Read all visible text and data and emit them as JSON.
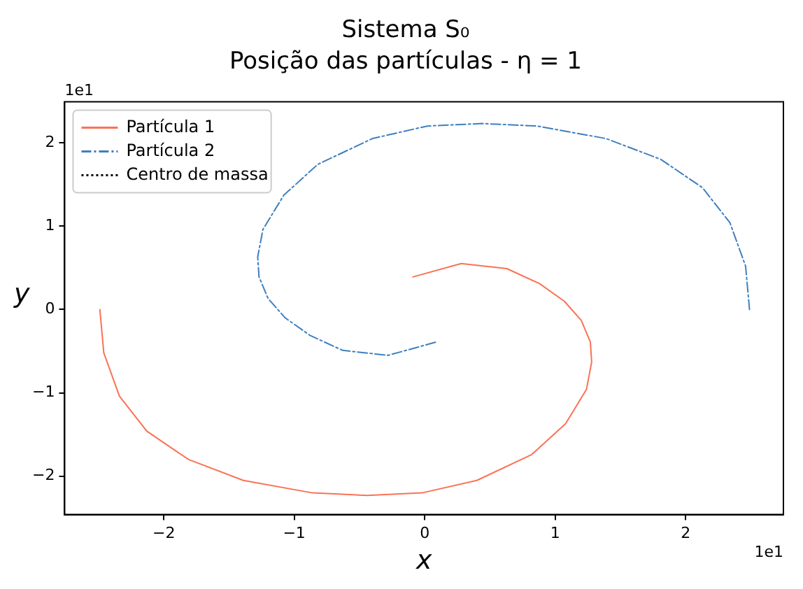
{
  "chart_data": {
    "type": "line",
    "title": "Sistema S₀",
    "subtitle": "Posição das partículas - η = 1",
    "xlabel": "x",
    "ylabel": "y",
    "annotations": [
      "1e1",
      "1e1"
    ],
    "xlim": [
      -2.76,
      2.75
    ],
    "ylim": [
      -2.46,
      2.49
    ],
    "xticks": [
      -2,
      -1,
      0,
      1,
      2
    ],
    "yticks": [
      -2,
      -1,
      0,
      1,
      2
    ],
    "grid": false,
    "legend": "top left",
    "marker": "none",
    "series": [
      {
        "name": "Partícula 1",
        "color": "#fa7256",
        "line_style": "solid",
        "x": [
          -2.49,
          -2.46,
          -2.34,
          -2.13,
          -1.81,
          -1.39,
          -0.86,
          -0.44,
          -0.02,
          0.4,
          0.82,
          1.08,
          1.24,
          1.28,
          1.27,
          1.2,
          1.07,
          0.88,
          0.63,
          0.28,
          -0.09
        ],
        "values": [
          0,
          -0.52,
          -1.04,
          -1.46,
          -1.8,
          -2.05,
          -2.2,
          -2.23,
          -2.2,
          -2.05,
          -1.74,
          -1.37,
          -0.96,
          -0.63,
          -0.39,
          -0.13,
          0.1,
          0.31,
          0.49,
          0.55,
          0.39
        ]
      },
      {
        "name": "Partícula 2",
        "color": "#3f7fbf",
        "line_style": "dashed",
        "x": [
          2.49,
          2.46,
          2.34,
          2.13,
          1.81,
          1.39,
          0.86,
          0.44,
          0.02,
          -0.4,
          -0.82,
          -1.08,
          -1.24,
          -1.28,
          -1.27,
          -1.2,
          -1.07,
          -0.88,
          -0.63,
          -0.28,
          0.09
        ],
        "values": [
          0,
          0.52,
          1.04,
          1.46,
          1.8,
          2.05,
          2.2,
          2.23,
          2.2,
          2.05,
          1.74,
          1.37,
          0.96,
          0.63,
          0.39,
          0.13,
          -0.1,
          -0.31,
          -0.49,
          -0.55,
          -0.39
        ]
      },
      {
        "name": "Centro de massa",
        "color": "#000000",
        "line_style": "dotted"
      }
    ]
  }
}
